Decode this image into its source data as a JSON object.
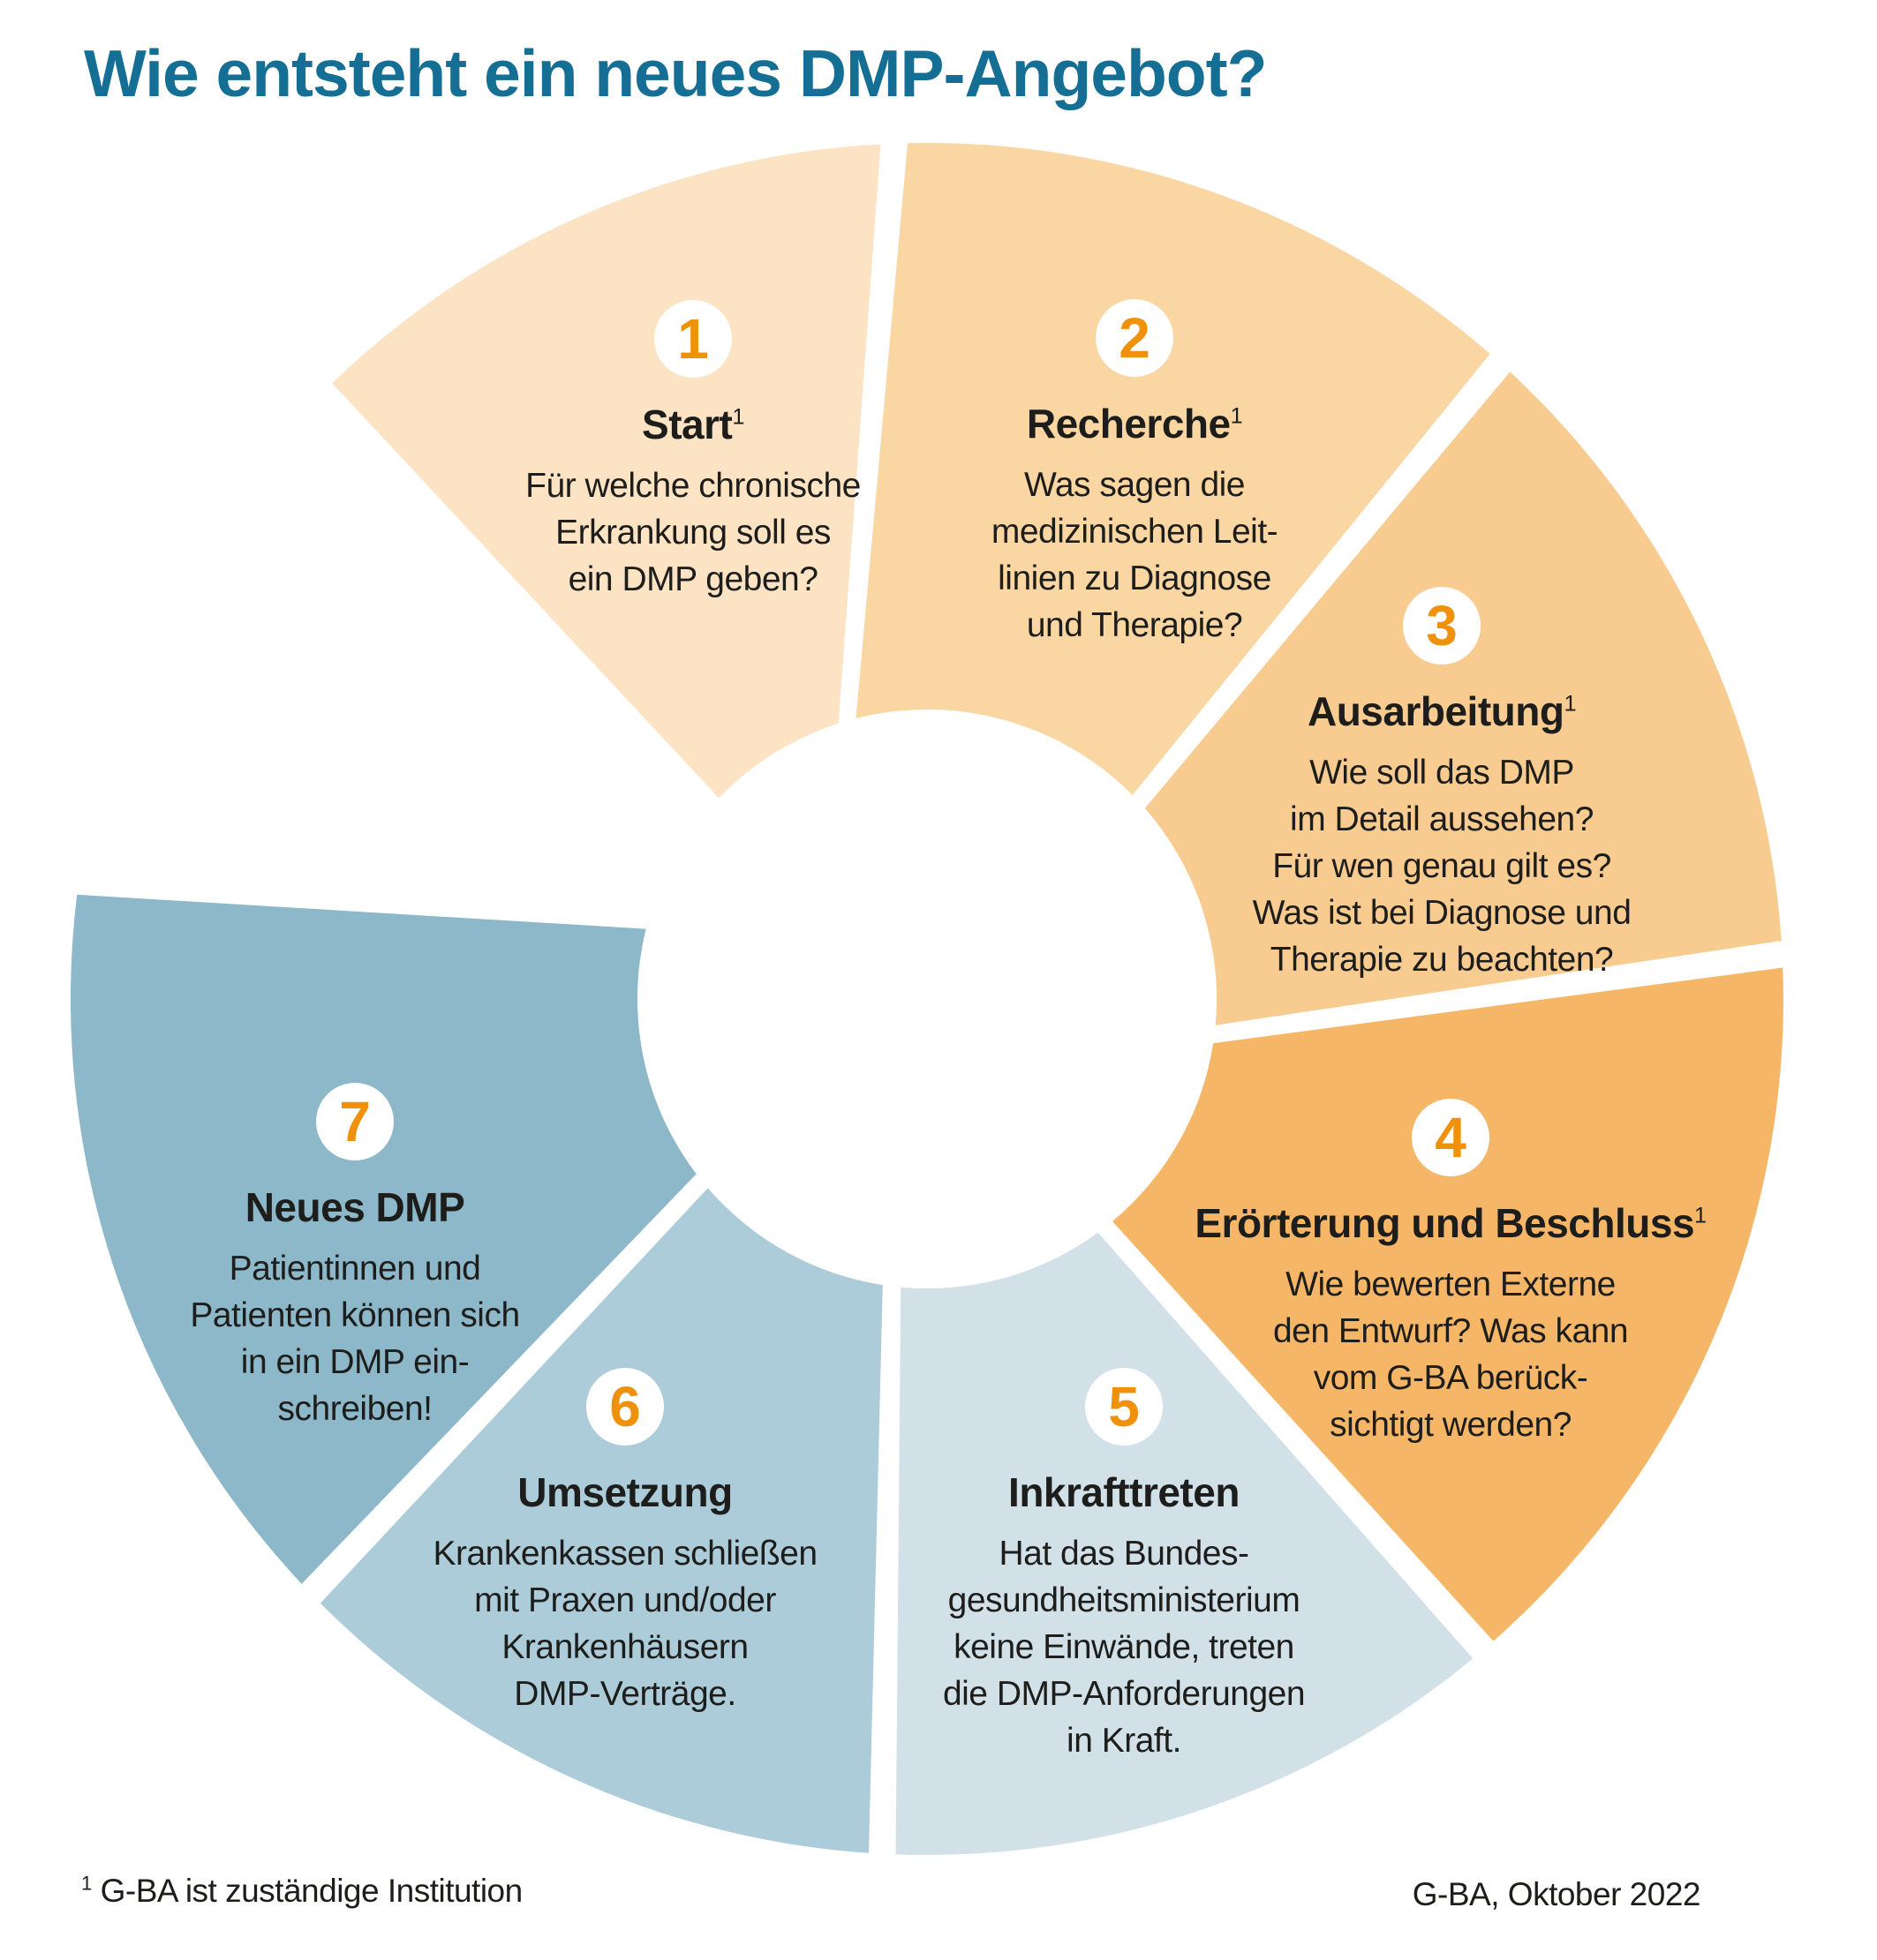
{
  "header": {
    "title": "Wie entsteht ein neues DMP-Angebot?",
    "title_color": "#156E94"
  },
  "palette": {
    "number_orange": "#F0910C",
    "body_text": "#1D1D1B",
    "background": "#FFFFFF",
    "badge_background": "#FFFFFF"
  },
  "segments": [
    {
      "number": "1",
      "title": "Start",
      "has_footnote": true,
      "color": "#FBE3C3",
      "lines": [
        "Für welche chronische",
        "Erkrankung soll es",
        "ein DMP geben?"
      ]
    },
    {
      "number": "2",
      "title": "Recherche",
      "has_footnote": true,
      "color": "#F9D6A2",
      "lines": [
        "Was sagen die",
        "medizinischen Leit-",
        "linien zu Diagnose",
        "und Therapie?"
      ]
    },
    {
      "number": "3",
      "title": "Ausarbeitung",
      "has_footnote": true,
      "color": "#F8CC90",
      "lines": [
        "Wie soll das DMP",
        "im Detail aussehen?",
        "Für wen genau gilt es?",
        "Was ist bei Diagnose und",
        "Therapie zu beachten?"
      ]
    },
    {
      "number": "4",
      "title": "Erörterung und Beschluss",
      "has_footnote": true,
      "color": "#F5B767",
      "lines": [
        "Wie bewerten Externe",
        "den Entwurf? Was kann",
        "vom G-BA berück-",
        "sichtigt werden?"
      ]
    },
    {
      "number": "5",
      "title": "Inkrafttreten",
      "has_footnote": false,
      "color": "#D2E0E8",
      "lines": [
        "Hat das Bundes-",
        "gesundheitsministerium",
        "keine Einwände, treten",
        "die DMP-Anforderungen",
        "in Kraft."
      ]
    },
    {
      "number": "6",
      "title": "Umsetzung",
      "has_footnote": false,
      "color": "#ADCCD9",
      "lines": [
        "Krankenkassen schließen",
        "mit Praxen und/oder",
        "Krankenhäusern",
        "DMP-Verträge."
      ]
    },
    {
      "number": "7",
      "title": "Neues DMP",
      "has_footnote": false,
      "color": "#8DB8C9",
      "lines": [
        "Patientinnen und",
        "Patienten können sich",
        "in ein DMP ein-",
        "schreiben!"
      ]
    }
  ],
  "footer": {
    "footnote_marker": "1",
    "footnote_text": "G-BA ist zuständige Institution",
    "source": "G-BA, Oktober 2022"
  }
}
